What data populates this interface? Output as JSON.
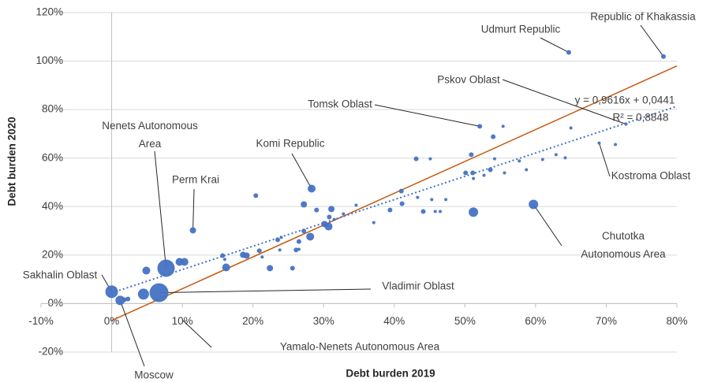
{
  "chart_data": {
    "type": "bubble",
    "x_label": "Debt burden 2019",
    "y_label": "Debt burden 2020",
    "color": "#4472c4",
    "xlim": [
      -10,
      80
    ],
    "ylim": [
      -20,
      120
    ],
    "xticks": [
      {
        "value": -10,
        "label": "-10%"
      },
      {
        "value": 0,
        "label": "0%"
      },
      {
        "value": 10,
        "label": "10%"
      },
      {
        "value": 20,
        "label": "20%"
      },
      {
        "value": 30,
        "label": "30%"
      },
      {
        "value": 40,
        "label": "40%"
      },
      {
        "value": 50,
        "label": "50%"
      },
      {
        "value": 60,
        "label": "60%"
      },
      {
        "value": 70,
        "label": "70%"
      },
      {
        "value": 80,
        "label": "80%"
      }
    ],
    "yticks": [
      {
        "value": -20,
        "label": "-20%"
      },
      {
        "value": 0,
        "label": "0%"
      },
      {
        "value": 20,
        "label": "20%"
      },
      {
        "value": 40,
        "label": "40%"
      },
      {
        "value": 60,
        "label": "60%"
      },
      {
        "value": 80,
        "label": "80%"
      },
      {
        "value": 100,
        "label": "100%"
      },
      {
        "value": 120,
        "label": "120%"
      }
    ],
    "grid": true,
    "x": [
      0,
      1.2,
      1.8,
      2.3,
      4.5,
      4.9,
      6.7,
      7.7,
      9.6,
      10.3,
      11.5,
      15.7,
      16.0,
      16.2,
      18.6,
      19.1,
      20.4,
      20.9,
      21.3,
      22.4,
      23.5,
      23.8,
      24.0,
      25.6,
      26.1,
      26.5,
      26.5,
      27.2,
      27.2,
      28.1,
      28.3,
      29.0,
      30.1,
      30.7,
      30.8,
      31.1,
      31.5,
      32.8,
      34.6,
      37.1,
      39.4,
      41.0,
      41.1,
      43.1,
      43.3,
      44.1,
      45.1,
      45.3,
      45.8,
      46.5,
      47.3,
      50.1,
      50.9,
      51.1,
      51.2,
      51.2,
      52.1,
      52.7,
      53.6,
      54.0,
      54.2,
      55.4,
      55.6,
      57.7,
      58.7,
      59.7,
      61.0,
      62.9,
      64.2,
      64.7,
      65.0,
      69.0,
      71.3,
      72.8,
      78.1
    ],
    "y": [
      4.9,
      1.3,
      1.6,
      1.9,
      3.9,
      13.6,
      4.5,
      14.6,
      17.2,
      17.2,
      30.2,
      19.8,
      18.2,
      14.9,
      20.1,
      19.8,
      44.5,
      21.8,
      19.2,
      14.6,
      26.3,
      22.1,
      27.3,
      14.6,
      22.1,
      22.4,
      25.6,
      29.9,
      40.9,
      27.6,
      47.4,
      38.6,
      32.8,
      31.8,
      35.7,
      39.0,
      34.7,
      37.0,
      40.6,
      33.4,
      38.6,
      46.4,
      41.2,
      59.7,
      43.8,
      38.0,
      59.7,
      42.9,
      38.0,
      38.0,
      42.9,
      53.9,
      61.4,
      53.9,
      51.6,
      37.7,
      73.1,
      52.9,
      55.2,
      68.8,
      59.7,
      73.1,
      53.9,
      58.8,
      55.2,
      40.9,
      59.4,
      61.4,
      60.1,
      103.6,
      72.4,
      66.2,
      65.6,
      74.0,
      101.9
    ],
    "sizes": [
      8,
      6,
      3,
      3,
      7,
      5,
      12,
      11,
      5,
      5,
      4,
      3,
      2,
      5,
      4,
      4,
      3,
      3,
      2,
      4,
      3,
      2,
      2,
      3,
      3,
      2,
      3,
      3,
      4,
      5,
      5,
      3,
      4,
      5,
      3,
      4,
      2,
      2,
      2,
      2,
      3,
      3,
      3,
      3,
      2,
      3,
      2,
      2,
      2,
      2,
      2,
      3,
      3,
      3,
      2,
      6,
      3,
      2,
      3,
      3,
      2,
      2,
      2,
      2,
      2,
      6,
      2,
      2,
      2,
      3,
      2,
      2,
      2,
      2,
      3
    ],
    "point_labels": [
      "Sakhalin Oblast",
      "Moscow",
      null,
      null,
      null,
      null,
      "Vladimir Oblast",
      "Nenets Autonomous Area",
      null,
      "Yamalo-Nenets Autonomous Area",
      "Perm Krai",
      null,
      null,
      null,
      null,
      null,
      null,
      null,
      null,
      null,
      null,
      null,
      null,
      null,
      null,
      null,
      null,
      null,
      null,
      null,
      "Komi Republic",
      null,
      null,
      null,
      null,
      null,
      null,
      null,
      null,
      null,
      null,
      null,
      null,
      null,
      null,
      null,
      null,
      null,
      null,
      null,
      null,
      null,
      null,
      null,
      null,
      null,
      "Tomsk Oblast",
      null,
      null,
      null,
      null,
      null,
      null,
      null,
      null,
      "Chutotka Autonomous Area",
      null,
      null,
      null,
      "Udmurt Republic",
      null,
      "Kostroma Oblast",
      null,
      "Pskov Oblast",
      "Republic of Khakassia"
    ],
    "trendline": {
      "equation": "y = 0,9616x + 0,0441",
      "r_squared": "R² = 0,8848",
      "slope": 0.9616,
      "intercept": 4.41,
      "color": "#4472c4"
    },
    "reference_line": {
      "x": [
        0,
        80
      ],
      "y": [
        -7,
        98
      ],
      "color": "#c55a11"
    }
  }
}
